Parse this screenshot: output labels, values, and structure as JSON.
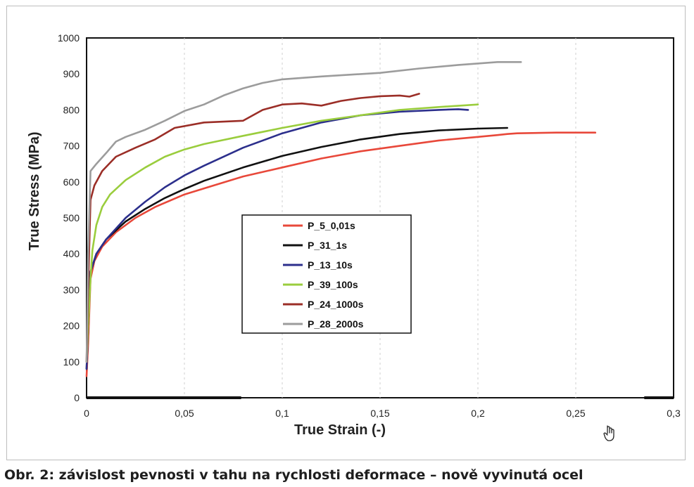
{
  "chart_data": {
    "type": "line",
    "xlabel": "True Strain (-)",
    "ylabel": "True Stress (MPa)",
    "xlim": [
      0,
      0.3
    ],
    "ylim": [
      0,
      1000
    ],
    "x_ticks": [
      0,
      0.05,
      0.1,
      0.15,
      0.2,
      0.25,
      0.3
    ],
    "x_tick_labels": [
      "0",
      "0,05",
      "0,1",
      "0,15",
      "0,2",
      "0,25",
      "0,3"
    ],
    "y_ticks": [
      0,
      100,
      200,
      300,
      400,
      500,
      600,
      700,
      800,
      900,
      1000
    ],
    "y_tick_labels": [
      "0",
      "100",
      "200",
      "300",
      "400",
      "500",
      "600",
      "700",
      "800",
      "900",
      "1000"
    ],
    "grid": "vertical dashed",
    "legend_position": "center-left",
    "series": [
      {
        "name": "P_5_0,01s",
        "color": "#e8483a",
        "x": [
          0,
          0.0008,
          0.002,
          0.004,
          0.008,
          0.015,
          0.025,
          0.035,
          0.05,
          0.065,
          0.08,
          0.1,
          0.12,
          0.14,
          0.16,
          0.18,
          0.2,
          0.21,
          0.215,
          0.22,
          0.24,
          0.255,
          0.26
        ],
        "y": [
          60,
          150,
          330,
          380,
          420,
          460,
          500,
          530,
          565,
          590,
          615,
          640,
          665,
          685,
          700,
          715,
          725,
          730,
          733,
          735,
          737,
          737,
          737
        ]
      },
      {
        "name": "P_31_1s",
        "color": "#111111",
        "x": [
          0,
          0.0008,
          0.002,
          0.005,
          0.01,
          0.02,
          0.03,
          0.04,
          0.05,
          0.06,
          0.08,
          0.1,
          0.12,
          0.14,
          0.16,
          0.18,
          0.2,
          0.215
        ],
        "y": [
          80,
          200,
          350,
          400,
          440,
          490,
          525,
          555,
          580,
          603,
          640,
          672,
          697,
          718,
          733,
          743,
          748,
          750
        ]
      },
      {
        "name": "P_13_10s",
        "color": "#2c2f8c",
        "x": [
          0,
          0.0008,
          0.002,
          0.005,
          0.01,
          0.02,
          0.03,
          0.04,
          0.05,
          0.06,
          0.08,
          0.1,
          0.12,
          0.14,
          0.16,
          0.18,
          0.19,
          0.195
        ],
        "y": [
          80,
          200,
          350,
          400,
          440,
          500,
          545,
          585,
          618,
          645,
          695,
          735,
          765,
          785,
          795,
          800,
          802,
          800
        ]
      },
      {
        "name": "P_39_100s",
        "color": "#9acd3d",
        "x": [
          0,
          0.0006,
          0.0012,
          0.002,
          0.003,
          0.005,
          0.008,
          0.012,
          0.02,
          0.03,
          0.04,
          0.05,
          0.06,
          0.08,
          0.1,
          0.12,
          0.14,
          0.16,
          0.18,
          0.2
        ],
        "y": [
          100,
          180,
          240,
          330,
          410,
          480,
          530,
          565,
          605,
          640,
          670,
          690,
          705,
          728,
          750,
          770,
          785,
          800,
          808,
          815
        ]
      },
      {
        "name": "P_24_1000s",
        "color": "#9b2e27",
        "x": [
          0,
          0.0008,
          0.002,
          0.004,
          0.008,
          0.015,
          0.025,
          0.035,
          0.045,
          0.06,
          0.08,
          0.09,
          0.1,
          0.11,
          0.12,
          0.13,
          0.14,
          0.15,
          0.16,
          0.165,
          0.17
        ],
        "y": [
          100,
          300,
          550,
          590,
          630,
          670,
          695,
          718,
          750,
          765,
          770,
          800,
          815,
          818,
          812,
          825,
          833,
          838,
          840,
          837,
          845
        ]
      },
      {
        "name": "P_28_2000s",
        "color": "#9c9c9c",
        "x": [
          0,
          0.0008,
          0.002,
          0.005,
          0.01,
          0.015,
          0.02,
          0.03,
          0.04,
          0.05,
          0.06,
          0.07,
          0.08,
          0.09,
          0.1,
          0.12,
          0.15,
          0.17,
          0.19,
          0.21,
          0.222
        ],
        "y": [
          100,
          400,
          630,
          650,
          680,
          712,
          725,
          745,
          770,
          797,
          815,
          840,
          860,
          875,
          885,
          893,
          903,
          915,
          925,
          933,
          933
        ]
      }
    ]
  },
  "caption": "Obr. 2: závislost pevnosti v tahu na rychlosti deformace – nově vyvinutá ocel",
  "icons": {
    "cursor": "hand-cursor-icon"
  }
}
